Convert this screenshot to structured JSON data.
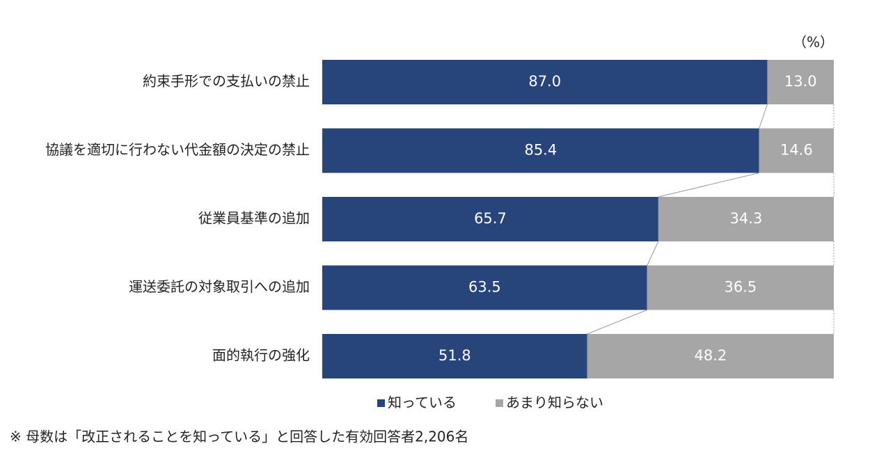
{
  "chart_data": {
    "type": "stacked-bar-horizontal",
    "unit_label": "（%）",
    "categories": [
      "約束手形での支払いの禁止",
      "協議を適切に行わない代金額の決定の禁止",
      "従業員基準の追加",
      "運送委託の対象取引への追加",
      "面的執行の強化"
    ],
    "series": [
      {
        "name": "知っている",
        "color": "#27457a",
        "values": [
          87.0,
          85.4,
          65.7,
          63.5,
          51.8
        ],
        "value_labels": [
          "87.0",
          "85.4",
          "65.7",
          "63.5",
          "51.8"
        ]
      },
      {
        "name": "あまり知らない",
        "color": "#a6a6a6",
        "values": [
          13.0,
          14.6,
          34.3,
          36.5,
          48.2
        ],
        "value_labels": [
          "13.0",
          "14.6",
          "34.3",
          "36.5",
          "48.2"
        ]
      }
    ],
    "note": "※ 母数は「改正されることを知っている」と回答した有効回答者2,206名"
  }
}
